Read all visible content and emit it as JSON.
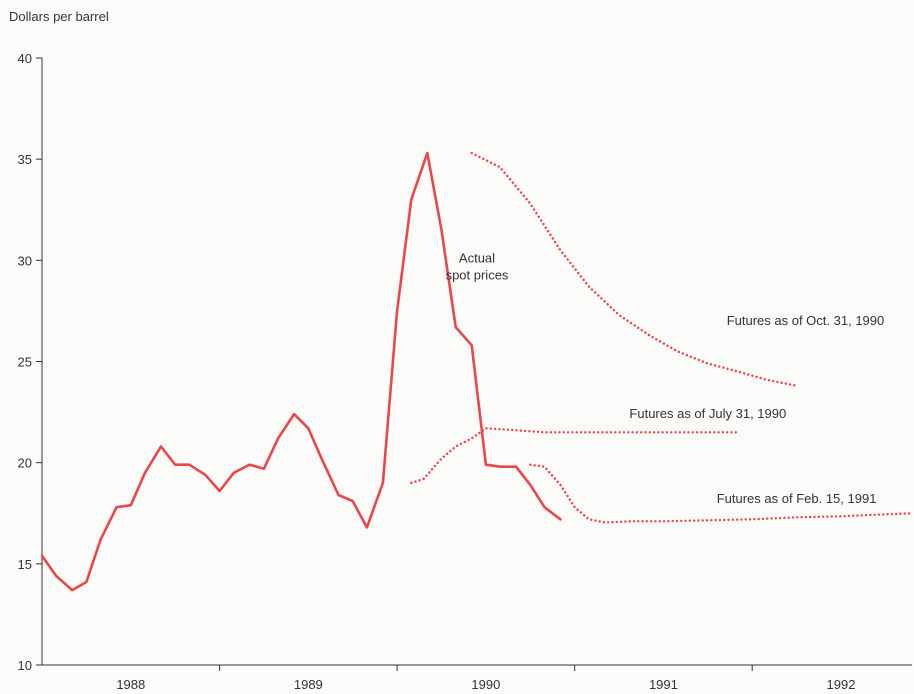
{
  "chart_data": {
    "type": "line",
    "title": "",
    "ylabel": "Dollars per barrel",
    "xlabel": "",
    "ylim": [
      10,
      40
    ],
    "xlim": [
      1988.0,
      1992.9
    ],
    "yticks": [
      10,
      15,
      20,
      25,
      30,
      35,
      40
    ],
    "xtick_labels": [
      {
        "label": "1988",
        "x": 1988.5
      },
      {
        "label": "1989",
        "x": 1989.5
      },
      {
        "label": "1990",
        "x": 1990.5
      },
      {
        "label": "1991",
        "x": 1991.5
      },
      {
        "label": "1992",
        "x": 1992.5
      }
    ],
    "year_boundaries": [
      1989,
      1990,
      1991,
      1992
    ],
    "grid": false,
    "colors": {
      "line": "#e8484a",
      "axis": "#333333"
    },
    "series": [
      {
        "label": "Actual spot prices",
        "label_lines": [
          "Actual",
          "spot prices"
        ],
        "label_pos": {
          "x": 1990.45,
          "y": 29.9
        },
        "style": "solid",
        "x": [
          1988.0,
          1988.08,
          1988.17,
          1988.25,
          1988.33,
          1988.42,
          1988.5,
          1988.58,
          1988.67,
          1988.75,
          1988.83,
          1988.92,
          1989.0,
          1989.08,
          1989.17,
          1989.25,
          1989.33,
          1989.42,
          1989.5,
          1989.58,
          1989.67,
          1989.75,
          1989.83,
          1989.92,
          1990.0,
          1990.08,
          1990.17,
          1990.25,
          1990.33,
          1990.42,
          1990.5,
          1990.58,
          1990.67,
          1990.75,
          1990.83,
          1990.92
        ],
        "values": [
          15.4,
          14.4,
          13.7,
          14.1,
          16.2,
          17.8,
          17.9,
          19.5,
          20.8,
          19.9,
          19.9,
          19.4,
          18.6,
          19.5,
          19.9,
          19.7,
          21.2,
          22.4,
          21.7,
          20.1,
          18.4,
          18.1,
          16.8,
          19.0,
          27.5,
          33.0,
          35.3,
          31.5,
          26.7,
          25.8,
          19.9,
          19.8,
          19.8,
          18.9,
          17.8,
          17.2
        ]
      },
      {
        "label": "Futures as of July 31, 1990",
        "label_pos": {
          "x": 1991.75,
          "y": 22.2
        },
        "style": "dotted",
        "x": [
          1990.08,
          1990.15,
          1990.25,
          1990.33,
          1990.42,
          1990.5,
          1990.67,
          1990.83,
          1991.0,
          1991.25,
          1991.5,
          1991.75,
          1991.92
        ],
        "values": [
          19.0,
          19.2,
          20.2,
          20.8,
          21.2,
          21.7,
          21.6,
          21.5,
          21.5,
          21.5,
          21.5,
          21.5,
          21.5
        ]
      },
      {
        "label": "Futures as of Oct. 31, 1990",
        "label_pos": {
          "x": 1992.3,
          "y": 26.8
        },
        "style": "dotted",
        "x": [
          1990.42,
          1990.58,
          1990.75,
          1990.92,
          1991.08,
          1991.25,
          1991.42,
          1991.58,
          1991.75,
          1991.92,
          1992.08,
          1992.25
        ],
        "values": [
          35.3,
          34.6,
          32.8,
          30.5,
          28.7,
          27.3,
          26.3,
          25.5,
          24.9,
          24.5,
          24.1,
          23.8
        ]
      },
      {
        "label": "Futures as of Feb. 15, 1991",
        "label_pos": {
          "x": 1992.25,
          "y": 18.0
        },
        "style": "dotted",
        "x": [
          1990.75,
          1990.83,
          1990.92,
          1991.0,
          1991.08,
          1991.17,
          1991.33,
          1991.5,
          1991.75,
          1992.0,
          1992.25,
          1992.5,
          1992.75,
          1992.9
        ],
        "values": [
          19.9,
          19.8,
          18.9,
          17.8,
          17.2,
          17.05,
          17.1,
          17.1,
          17.15,
          17.2,
          17.3,
          17.35,
          17.45,
          17.5
        ]
      }
    ]
  }
}
